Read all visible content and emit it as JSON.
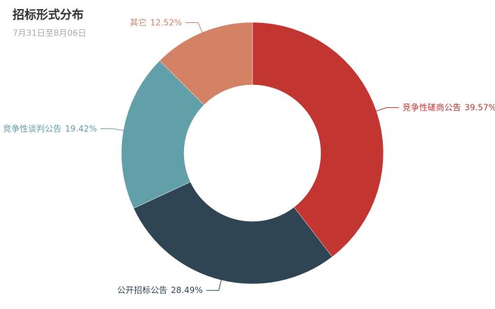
{
  "chart_data": {
    "type": "pie",
    "title": "招标形式分布",
    "subtitle": "7月31日至8月06日",
    "categories": [
      "竞争性磋商公告",
      "公开招标公告",
      "竞争性谈判公告",
      "其它"
    ],
    "values": [
      39.57,
      28.49,
      19.42,
      12.52
    ],
    "value_labels": [
      "39.57%",
      "28.49%",
      "19.42%",
      "12.52%"
    ],
    "colors": [
      "#c23531",
      "#2f4554",
      "#61a0a8",
      "#d48265"
    ]
  }
}
